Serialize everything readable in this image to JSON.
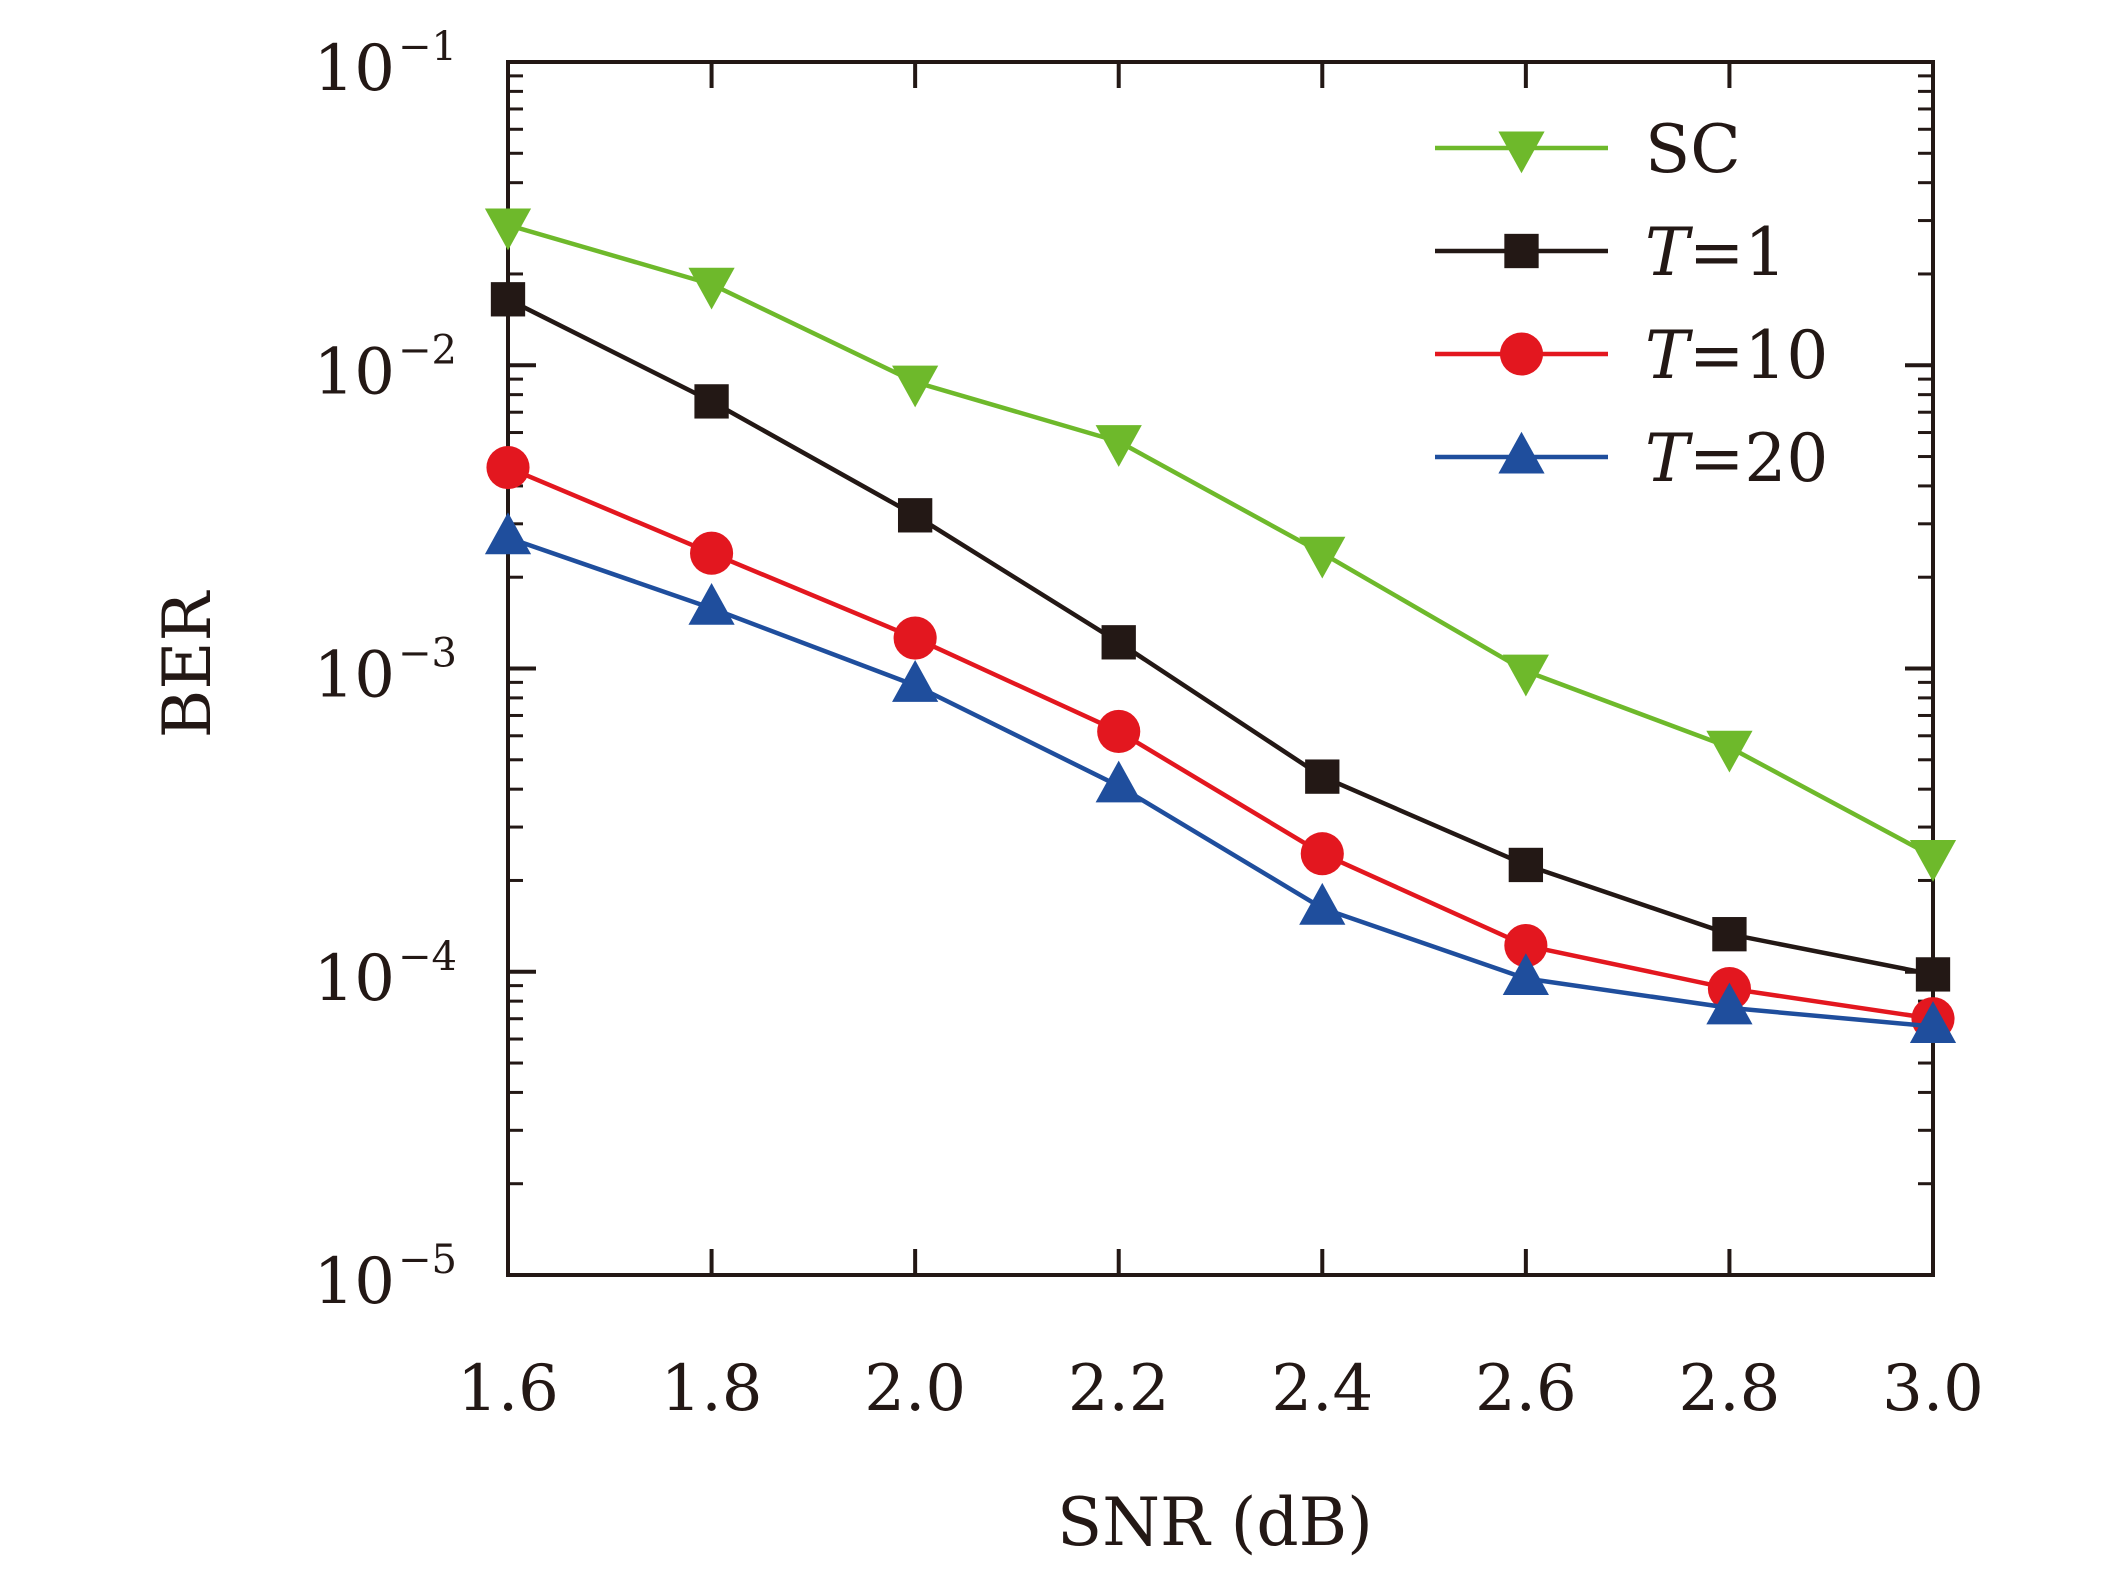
{
  "chart_data": {
    "type": "line",
    "xlabel": "SNR (dB)",
    "ylabel": "BER",
    "x": [
      1.6,
      1.8,
      2.0,
      2.2,
      2.4,
      2.6,
      2.8,
      3.0
    ],
    "x_tick_labels": [
      "1.6",
      "1.8",
      "2.0",
      "2.2",
      "2.4",
      "2.6",
      "2.8",
      "3.0"
    ],
    "xlim": [
      1.6,
      3.0
    ],
    "y_scale": "log",
    "ylim": [
      1e-05,
      0.1
    ],
    "y_ticks": [
      {
        "base": "10",
        "exp": "−1",
        "value": 0.1
      },
      {
        "base": "10",
        "exp": "−2",
        "value": 0.01
      },
      {
        "base": "10",
        "exp": "−3",
        "value": 0.001
      },
      {
        "base": "10",
        "exp": "−4",
        "value": 0.0001
      },
      {
        "base": "10",
        "exp": "−5",
        "value": 1e-05
      }
    ],
    "grid": false,
    "legend_position": "top-right",
    "series": [
      {
        "name": "SC",
        "legend_prefix": "",
        "legend_suffix": "SC",
        "italic_prefix": "",
        "color": "#6eb92b",
        "marker": "triangle-down",
        "values": [
          0.029,
          0.0185,
          0.0088,
          0.0056,
          0.0024,
          0.00098,
          0.00055,
          0.00024
        ]
      },
      {
        "name": "T=1",
        "legend_prefix": "T",
        "legend_suffix": "=1",
        "color": "#231815",
        "marker": "square",
        "values": [
          0.0165,
          0.0076,
          0.0032,
          0.00122,
          0.00044,
          0.000225,
          0.000133,
          9.8e-05
        ]
      },
      {
        "name": "T=10",
        "legend_prefix": "T",
        "legend_suffix": "=10",
        "color": "#e3171f",
        "marker": "circle",
        "values": [
          0.0046,
          0.0024,
          0.00126,
          0.00062,
          0.000245,
          0.000122,
          8.8e-05,
          7e-05
        ]
      },
      {
        "name": "T=20",
        "legend_prefix": "T",
        "legend_suffix": "=20",
        "color": "#1f4e9d",
        "marker": "triangle-up",
        "values": [
          0.0027,
          0.00158,
          0.00088,
          0.00041,
          0.000162,
          9.5e-05,
          7.6e-05,
          6.6e-05
        ]
      }
    ]
  }
}
